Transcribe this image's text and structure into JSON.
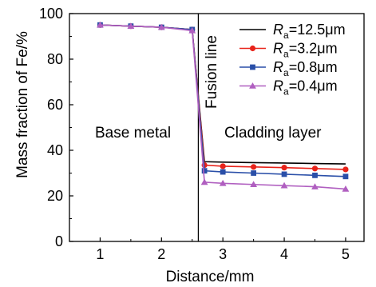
{
  "chart_data": {
    "type": "line",
    "xlabel": "Distance/mm",
    "ylabel": "Mass fraction of Fe/%",
    "xlim": [
      0.5,
      5.3
    ],
    "ylim": [
      0,
      100
    ],
    "xticks": [
      "1",
      "2",
      "3",
      "4",
      "5"
    ],
    "yticks": [
      "0",
      "20",
      "40",
      "60",
      "80",
      "100"
    ],
    "grid": false,
    "legend_position": "top-right",
    "annotations": {
      "base_metal": "Base metal",
      "cladding_layer": "Cladding layer",
      "fusion_line": "Fusion line"
    },
    "fusion_line_x": 2.6,
    "series": [
      {
        "name": "12.5μm",
        "legend": {
          "prefix": "R",
          "sub": "a",
          "value": "=12.5μm"
        },
        "color": "#000000",
        "marker": "none",
        "x": [
          1,
          1.5,
          2,
          2.5,
          2.7,
          3,
          3.5,
          4,
          4.5,
          5
        ],
        "y": [
          95,
          94.5,
          94,
          93,
          35,
          34.8,
          34.6,
          34.4,
          34.2,
          34
        ]
      },
      {
        "name": "3.2μm",
        "legend": {
          "prefix": "R",
          "sub": "a",
          "value": "=3.2μm"
        },
        "color": "#e8231a",
        "marker": "circle",
        "x": [
          1,
          1.5,
          2,
          2.5,
          2.7,
          3,
          3.5,
          4,
          4.5,
          5
        ],
        "y": [
          95,
          94.5,
          94,
          93,
          33.5,
          33,
          32.7,
          32.4,
          32,
          31.6
        ]
      },
      {
        "name": "0.8μm",
        "legend": {
          "prefix": "R",
          "sub": "a",
          "value": "=0.8μm"
        },
        "color": "#2a4fa8",
        "marker": "square",
        "x": [
          1,
          1.5,
          2,
          2.5,
          2.7,
          3,
          3.5,
          4,
          4.5,
          5
        ],
        "y": [
          95,
          94.5,
          94,
          93,
          31,
          30.5,
          30,
          29.5,
          29,
          28.5
        ]
      },
      {
        "name": "0.4μm",
        "legend": {
          "prefix": "R",
          "sub": "a",
          "value": "=0.4μm"
        },
        "color": "#b05fc0",
        "marker": "triangle",
        "x": [
          1,
          1.5,
          2,
          2.5,
          2.7,
          3,
          3.5,
          4,
          4.5,
          5
        ],
        "y": [
          95,
          94.5,
          94,
          92.5,
          26,
          25.5,
          25,
          24.5,
          24,
          23
        ]
      }
    ]
  }
}
